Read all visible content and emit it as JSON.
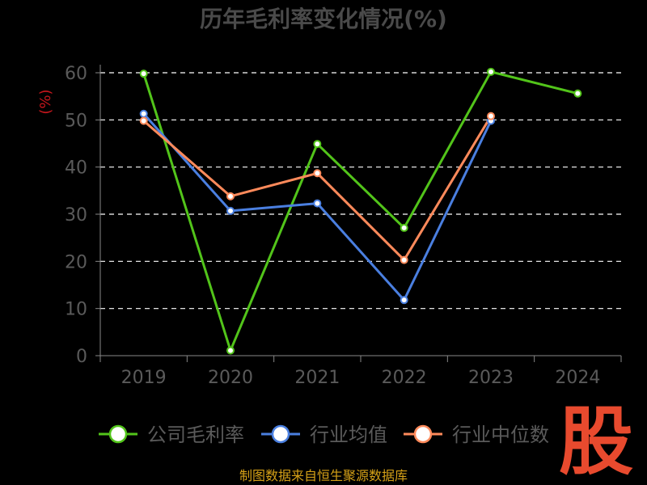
{
  "page": {
    "source": "制图数据来自恒生聚源数据库",
    "watermark": "股"
  },
  "colors": {
    "background": "#000000",
    "grid": "#ffffff",
    "axis": "#888888",
    "title": "#4a4a4a",
    "ylabel": "#c4161c",
    "ticks": "#5a5a5a",
    "source": "#d4a017",
    "watermark": "#e84a2e"
  },
  "chart_data": {
    "type": "line",
    "title": "历年毛利率变化情况(%)",
    "xlabel": "",
    "ylabel": "(%)",
    "x": [
      "2019",
      "2020",
      "2021",
      "2022",
      "2023",
      "2024"
    ],
    "ylim": [
      0,
      60
    ],
    "yticks": [
      0,
      10,
      20,
      30,
      40,
      50,
      60
    ],
    "grid": true,
    "legend_position": "bottom",
    "series": [
      {
        "name": "公司毛利率",
        "color": "#52c41a",
        "values": [
          59.8,
          1.1,
          44.9,
          27.1,
          60.2,
          55.6
        ]
      },
      {
        "name": "行业均值",
        "color": "#4a7fe0",
        "values": [
          51.3,
          30.7,
          32.3,
          11.8,
          49.8,
          null
        ]
      },
      {
        "name": "行业中位数",
        "color": "#ff8a5b",
        "values": [
          49.8,
          33.8,
          38.7,
          20.3,
          50.8,
          null
        ]
      }
    ]
  }
}
